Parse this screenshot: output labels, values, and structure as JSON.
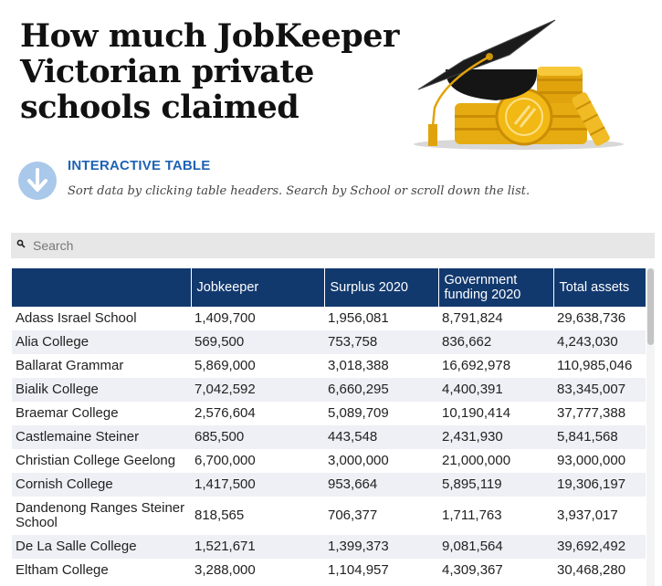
{
  "header": {
    "title_lines": [
      "How much JobKeeper",
      "Victorian private",
      "schools claimed"
    ]
  },
  "hero_image": {
    "icon": "graduation-cap-coins-icon",
    "accent": "#f2b814"
  },
  "intro": {
    "icon": "arrow-down-circle-icon",
    "title": "INTERACTIVE TABLE",
    "text": "Sort data by clicking table headers. Search by School or scroll down the list."
  },
  "search": {
    "placeholder": "Search",
    "value": "",
    "icon": "search-icon"
  },
  "table": {
    "columns": [
      {
        "label": ""
      },
      {
        "label": "Jobkeeper"
      },
      {
        "label": "Surplus 2020"
      },
      {
        "label": "Government funding 2020"
      },
      {
        "label": "Total assets"
      }
    ],
    "rows": [
      [
        "Adass Israel School",
        "1,409,700",
        "1,956,081",
        "8,791,824",
        "29,638,736"
      ],
      [
        "Alia College",
        "569,500",
        "753,758",
        "836,662",
        "4,243,030"
      ],
      [
        "Ballarat Grammar",
        "5,869,000",
        "3,018,388",
        "16,692,978",
        "110,985,046"
      ],
      [
        "Bialik College",
        "7,042,592",
        "6,660,295",
        "4,400,391",
        "83,345,007"
      ],
      [
        "Braemar College",
        "2,576,604",
        "5,089,709",
        "10,190,414",
        "37,777,388"
      ],
      [
        "Castlemaine Steiner",
        "685,500",
        "443,548",
        "2,431,930",
        "5,841,568"
      ],
      [
        "Christian College Geelong",
        "6,700,000",
        "3,000,000",
        "21,000,000",
        "93,000,000"
      ],
      [
        "Cornish College",
        "1,417,500",
        "953,664",
        "5,895,119",
        "19,306,197"
      ],
      [
        "Dandenong Ranges Steiner School",
        "818,565",
        "706,377",
        "1,711,763",
        "3,937,017"
      ],
      [
        "De La Salle College",
        "1,521,671",
        "1,399,373",
        "9,081,564",
        "39,692,492"
      ],
      [
        "Eltham College",
        "3,288,000",
        "1,104,957",
        "4,309,367",
        "30,468,280"
      ]
    ]
  },
  "colors": {
    "header_bg": "#12396e",
    "accent_blue": "#1f63b3",
    "stripe": "#eef0f5"
  }
}
